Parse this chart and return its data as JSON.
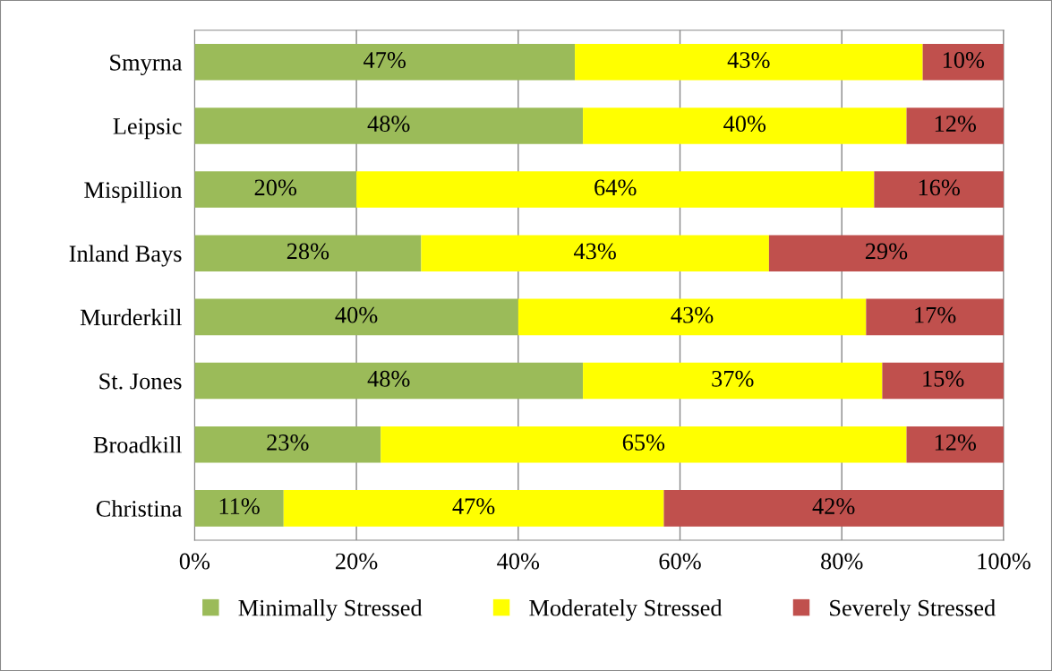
{
  "chart_data": {
    "type": "bar",
    "orientation": "horizontal",
    "stacked": true,
    "categories": [
      "Smyrna",
      "Leipsic",
      "Mispillion",
      "Inland Bays",
      "Murderkill",
      "St. Jones",
      "Broadkill",
      "Christina"
    ],
    "series": [
      {
        "name": "Minimally Stressed",
        "color": "#9bbb59",
        "values": [
          47,
          48,
          20,
          28,
          40,
          48,
          23,
          11
        ],
        "value_labels": [
          "47%",
          "48%",
          "20%",
          "28%",
          "40%",
          "48%",
          "23%",
          "11%"
        ]
      },
      {
        "name": "Moderately Stressed",
        "color": "#ffff00",
        "values": [
          43,
          40,
          64,
          43,
          43,
          37,
          65,
          47
        ],
        "value_labels": [
          "43%",
          "40%",
          "64%",
          "43%",
          "43%",
          "37%",
          "65%",
          "47%"
        ]
      },
      {
        "name": "Severely Stressed",
        "color": "#c0504d",
        "values": [
          10,
          12,
          16,
          29,
          17,
          15,
          12,
          42
        ],
        "value_labels": [
          "10%",
          "12%",
          "16%",
          "29%",
          "17%",
          "15%",
          "12%",
          "42%"
        ]
      }
    ],
    "xlim": [
      0,
      100
    ],
    "xticks": [
      {
        "value": 0,
        "label": "0%"
      },
      {
        "value": 20,
        "label": "20%"
      },
      {
        "value": 40,
        "label": "40%"
      },
      {
        "value": 60,
        "label": "60%"
      },
      {
        "value": 80,
        "label": "80%"
      },
      {
        "value": 100,
        "label": "100%"
      }
    ],
    "grid": "x",
    "legend": "bottom"
  }
}
